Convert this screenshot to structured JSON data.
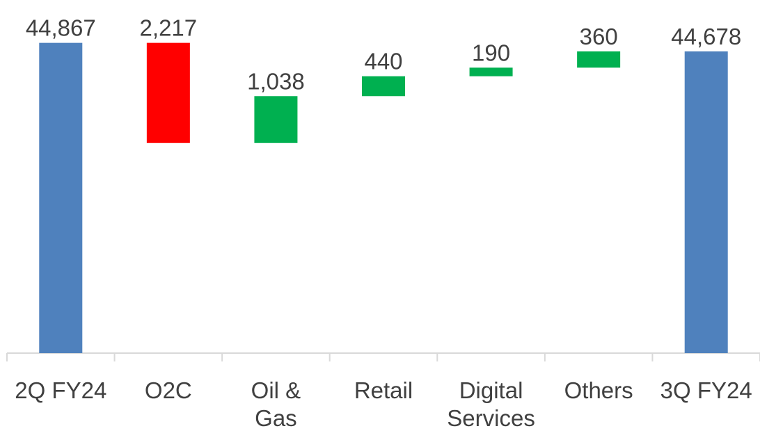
{
  "chart_data": {
    "type": "waterfall",
    "categories": [
      "2Q FY24",
      "O2C",
      "Oil & Gas",
      "Retail",
      "Digital Services",
      "Others",
      "3Q FY24"
    ],
    "values": [
      44867,
      -2217,
      1038,
      440,
      190,
      360,
      44678
    ],
    "value_labels": [
      "44,867",
      "2,217",
      "1,038",
      "440",
      "190",
      "360",
      "44,678"
    ],
    "measures": [
      "absolute",
      "relative",
      "relative",
      "relative",
      "relative",
      "relative",
      "absolute"
    ],
    "colors": [
      "#4f81bd",
      "#ff0000",
      "#00b050",
      "#00b050",
      "#00b050",
      "#00b050",
      "#4f81bd"
    ],
    "ylim": [
      38000,
      45000
    ]
  }
}
